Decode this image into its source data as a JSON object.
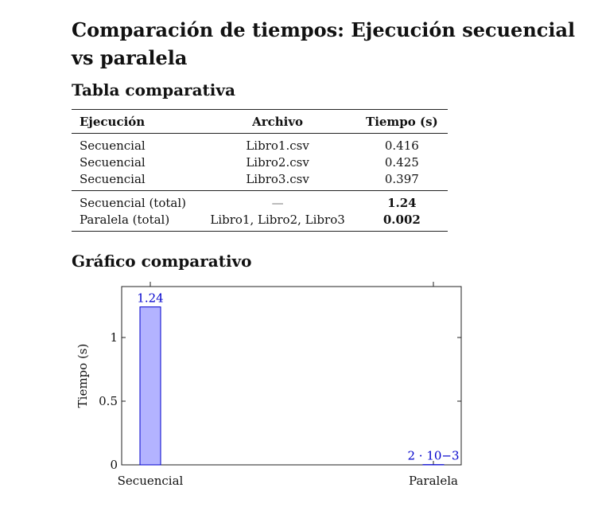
{
  "document": {
    "title": "Comparación de tiempos: Ejecución secuencial vs paralela",
    "table_heading": "Tabla comparativa",
    "chart_heading": "Gráfico comparativo"
  },
  "table": {
    "headers": [
      "Ejecución",
      "Archivo",
      "Tiempo (s)"
    ],
    "rows": [
      [
        "Secuencial",
        "Libro1.csv",
        "0.416"
      ],
      [
        "Secuencial",
        "Libro2.csv",
        "0.425"
      ],
      [
        "Secuencial",
        "Libro3.csv",
        "0.397"
      ]
    ],
    "totals": [
      [
        "Secuencial (total)",
        "—",
        "1.24"
      ],
      [
        "Paralela (total)",
        "Libro1, Libro2, Libro3",
        "0.002"
      ]
    ]
  },
  "chart_data": {
    "type": "bar",
    "categories": [
      "Secuencial",
      "Paralela"
    ],
    "values": [
      1.24,
      0.002
    ],
    "data_labels": [
      "1.24",
      "2 · 10−3"
    ],
    "title": "",
    "xlabel": "",
    "ylabel": "Tiempo (s)",
    "ylim": [
      0,
      1.4
    ],
    "yticks": [
      0,
      0.5,
      1
    ],
    "ytick_labels": [
      "0",
      "0.5",
      "1"
    ],
    "grid": false,
    "legend": "none",
    "bar_fill": "#b3b3ff",
    "bar_stroke": "#0000cc",
    "label_color": "#0000cc"
  }
}
